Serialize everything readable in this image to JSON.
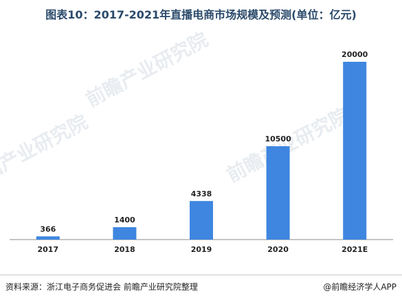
{
  "title": "图表10：2017-2021年直播电商市场规模及预测(单位：亿元)",
  "source": "资料来源：浙江电子商务促进会 前瞻产业研究院整理",
  "credit": "@前瞻经济学人APP",
  "watermark": "前瞻产业研究院",
  "colors": {
    "bar": "#3e86e0",
    "axis": "#8a8a8a",
    "title": "#2b4a6b"
  },
  "chart_data": {
    "type": "bar",
    "categories": [
      "2017",
      "2018",
      "2019",
      "2020",
      "2021E"
    ],
    "values": [
      366,
      1400,
      4338,
      10500,
      20000
    ],
    "data_labels": [
      "366",
      "1400",
      "4338",
      "10500",
      "20000"
    ],
    "title": "图表10：2017-2021年直播电商市场规模及预测(单位：亿元)",
    "xlabel": "",
    "ylabel": "",
    "ylim": [
      0,
      20000
    ],
    "grid": false,
    "legend": "none"
  }
}
